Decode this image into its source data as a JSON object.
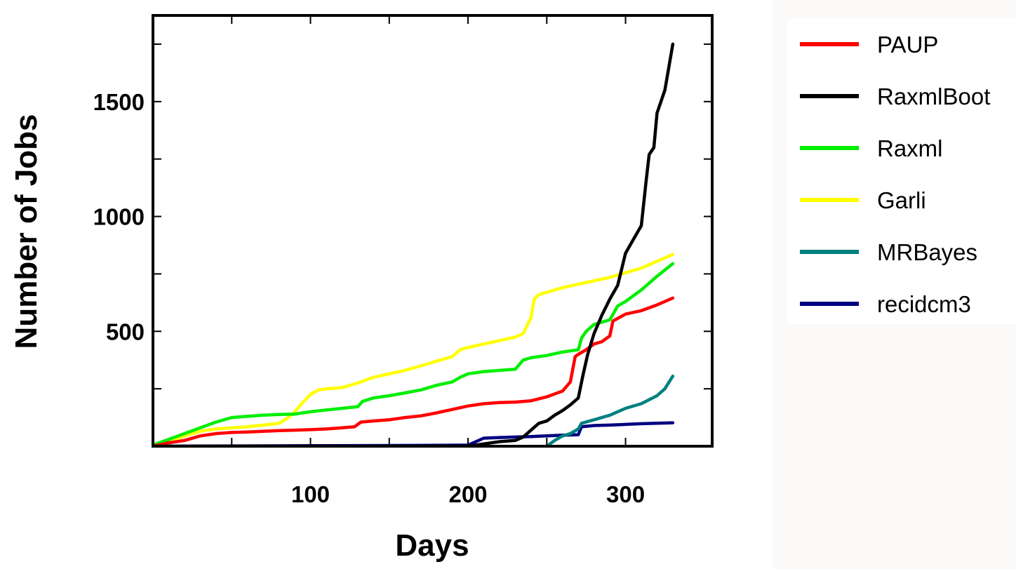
{
  "chart_data": {
    "type": "line",
    "title": "",
    "xlabel": "Days",
    "ylabel": "Number of Jobs",
    "xlim": [
      0,
      355
    ],
    "ylim": [
      0,
      1875
    ],
    "x_ticks": [
      100,
      200,
      300
    ],
    "y_ticks": [
      500,
      1000,
      1500
    ],
    "x_minor_ticks": [
      50,
      100,
      150,
      200,
      250,
      300
    ],
    "y_minor_ticks": [
      250,
      500,
      750,
      1000,
      1250,
      1500,
      1750
    ],
    "legend_position": "outside-right",
    "grid": false,
    "series": [
      {
        "name": "PAUP",
        "color": "#ff0000",
        "points": [
          [
            0,
            0
          ],
          [
            10,
            15
          ],
          [
            20,
            25
          ],
          [
            30,
            45
          ],
          [
            40,
            55
          ],
          [
            50,
            60
          ],
          [
            60,
            62
          ],
          [
            70,
            65
          ],
          [
            80,
            68
          ],
          [
            90,
            70
          ],
          [
            100,
            72
          ],
          [
            110,
            75
          ],
          [
            120,
            80
          ],
          [
            128,
            85
          ],
          [
            132,
            105
          ],
          [
            140,
            110
          ],
          [
            150,
            115
          ],
          [
            160,
            125
          ],
          [
            170,
            132
          ],
          [
            180,
            145
          ],
          [
            190,
            160
          ],
          [
            200,
            175
          ],
          [
            210,
            185
          ],
          [
            220,
            190
          ],
          [
            230,
            192
          ],
          [
            240,
            198
          ],
          [
            250,
            215
          ],
          [
            260,
            240
          ],
          [
            265,
            280
          ],
          [
            268,
            390
          ],
          [
            270,
            400
          ],
          [
            275,
            420
          ],
          [
            280,
            445
          ],
          [
            285,
            455
          ],
          [
            290,
            480
          ],
          [
            292,
            545
          ],
          [
            300,
            575
          ],
          [
            310,
            590
          ],
          [
            320,
            615
          ],
          [
            330,
            645
          ]
        ]
      },
      {
        "name": "RaxmlBoot",
        "color": "#000000",
        "points": [
          [
            0,
            0
          ],
          [
            200,
            0
          ],
          [
            210,
            10
          ],
          [
            220,
            20
          ],
          [
            230,
            25
          ],
          [
            235,
            40
          ],
          [
            240,
            70
          ],
          [
            245,
            100
          ],
          [
            250,
            110
          ],
          [
            255,
            135
          ],
          [
            260,
            155
          ],
          [
            265,
            180
          ],
          [
            270,
            210
          ],
          [
            273,
            310
          ],
          [
            276,
            400
          ],
          [
            280,
            490
          ],
          [
            285,
            570
          ],
          [
            290,
            640
          ],
          [
            295,
            700
          ],
          [
            300,
            840
          ],
          [
            305,
            900
          ],
          [
            310,
            960
          ],
          [
            313,
            1150
          ],
          [
            315,
            1270
          ],
          [
            318,
            1300
          ],
          [
            320,
            1450
          ],
          [
            325,
            1550
          ],
          [
            330,
            1750
          ]
        ]
      },
      {
        "name": "Raxml",
        "color": "#00ee00",
        "points": [
          [
            0,
            5
          ],
          [
            10,
            30
          ],
          [
            20,
            55
          ],
          [
            30,
            80
          ],
          [
            40,
            105
          ],
          [
            50,
            125
          ],
          [
            60,
            130
          ],
          [
            70,
            135
          ],
          [
            80,
            138
          ],
          [
            90,
            140
          ],
          [
            100,
            150
          ],
          [
            110,
            158
          ],
          [
            120,
            165
          ],
          [
            130,
            172
          ],
          [
            133,
            195
          ],
          [
            140,
            210
          ],
          [
            150,
            220
          ],
          [
            160,
            232
          ],
          [
            170,
            245
          ],
          [
            180,
            265
          ],
          [
            190,
            280
          ],
          [
            195,
            300
          ],
          [
            200,
            315
          ],
          [
            210,
            325
          ],
          [
            220,
            330
          ],
          [
            230,
            335
          ],
          [
            235,
            375
          ],
          [
            240,
            385
          ],
          [
            250,
            395
          ],
          [
            260,
            410
          ],
          [
            270,
            420
          ],
          [
            272,
            470
          ],
          [
            275,
            500
          ],
          [
            280,
            530
          ],
          [
            285,
            540
          ],
          [
            290,
            550
          ],
          [
            295,
            610
          ],
          [
            300,
            630
          ],
          [
            310,
            680
          ],
          [
            320,
            740
          ],
          [
            330,
            795
          ]
        ]
      },
      {
        "name": "Garli",
        "color": "#ffff00",
        "points": [
          [
            0,
            0
          ],
          [
            10,
            20
          ],
          [
            20,
            45
          ],
          [
            30,
            65
          ],
          [
            40,
            75
          ],
          [
            50,
            80
          ],
          [
            60,
            85
          ],
          [
            70,
            92
          ],
          [
            80,
            100
          ],
          [
            85,
            120
          ],
          [
            90,
            150
          ],
          [
            95,
            190
          ],
          [
            100,
            225
          ],
          [
            105,
            245
          ],
          [
            110,
            250
          ],
          [
            120,
            255
          ],
          [
            130,
            275
          ],
          [
            140,
            300
          ],
          [
            150,
            315
          ],
          [
            160,
            330
          ],
          [
            170,
            350
          ],
          [
            180,
            370
          ],
          [
            190,
            390
          ],
          [
            195,
            420
          ],
          [
            200,
            430
          ],
          [
            210,
            445
          ],
          [
            220,
            460
          ],
          [
            230,
            475
          ],
          [
            235,
            490
          ],
          [
            240,
            560
          ],
          [
            242,
            640
          ],
          [
            245,
            660
          ],
          [
            250,
            670
          ],
          [
            260,
            690
          ],
          [
            270,
            705
          ],
          [
            280,
            720
          ],
          [
            290,
            735
          ],
          [
            300,
            755
          ],
          [
            310,
            775
          ],
          [
            320,
            805
          ],
          [
            330,
            835
          ]
        ]
      },
      {
        "name": "MRBayes",
        "color": "#008080",
        "points": [
          [
            250,
            0
          ],
          [
            255,
            25
          ],
          [
            260,
            45
          ],
          [
            265,
            55
          ],
          [
            270,
            75
          ],
          [
            272,
            100
          ],
          [
            280,
            115
          ],
          [
            290,
            135
          ],
          [
            300,
            165
          ],
          [
            310,
            185
          ],
          [
            320,
            220
          ],
          [
            325,
            250
          ],
          [
            330,
            305
          ]
        ]
      },
      {
        "name": "recidcm3",
        "color": "#000080",
        "points": [
          [
            0,
            0
          ],
          [
            100,
            2
          ],
          [
            150,
            3
          ],
          [
            200,
            5
          ],
          [
            205,
            20
          ],
          [
            210,
            35
          ],
          [
            220,
            38
          ],
          [
            230,
            40
          ],
          [
            240,
            42
          ],
          [
            250,
            45
          ],
          [
            260,
            48
          ],
          [
            270,
            50
          ],
          [
            272,
            85
          ],
          [
            280,
            90
          ],
          [
            290,
            92
          ],
          [
            300,
            95
          ],
          [
            310,
            98
          ],
          [
            320,
            100
          ],
          [
            330,
            102
          ]
        ]
      }
    ]
  }
}
